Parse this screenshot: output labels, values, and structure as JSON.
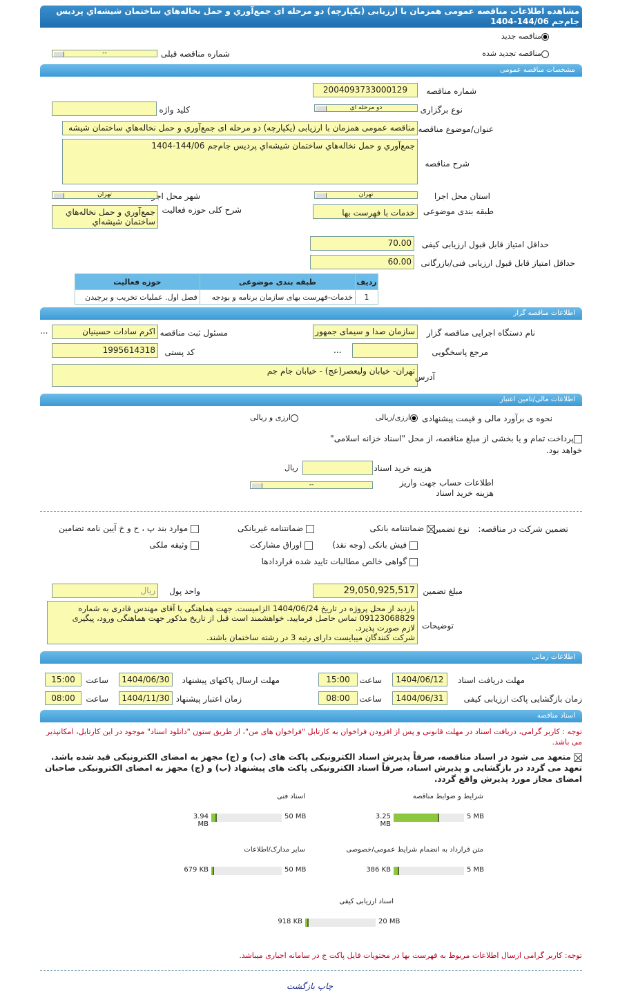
{
  "title": "مشاهده اطلاعات مناقصه عمومی همزمان با ارزیابی (یکپارچه) دو مرحله ای جمع‌آوري و حمل نخاله‌هاي ساختمان شيشه‌اي پرديس جام‌جم 144/06-1404",
  "tender_type": {
    "new_label": "مناقصه جديد",
    "renewed_label": "مناقصه تجديد شده",
    "selected": "new",
    "prev_label": "شماره مناقصه قبلی",
    "prev_value": "--"
  },
  "general": {
    "header": "مشخصات مناقصه عمومی",
    "number_label": "شماره مناقصه",
    "number": "2004093733000129",
    "holding_label": "نوع برگزاری",
    "holding": "دو مرحله ای",
    "keyword_label": "کلید واژه",
    "keyword": "",
    "subject_label": "عنوان/موضوع مناقصه",
    "subject": "مناقصه عمومی همزمان با ارزیابی (یکپارچه) دو مرحله ای جمع‌آوري و حمل نخاله‌هاي ساختمان شيشه",
    "desc_label": "شرح مناقصه",
    "desc": "جمع‌آوري و حمل نخاله‌هاي ساختمان شيشه‌اي پرديس جام‌جم 144/06-1404",
    "province_label": "استان محل اجرا",
    "province": "تهران",
    "city_label": "شهر محل اجرا",
    "city": "تهران",
    "category_label": "طبقه بندی موضوعی",
    "category": "خدمات با فهرست بها",
    "activity_label": "شرح کلی حوزه فعالیت",
    "activity": "جمع‌آوري و حمل نخاله‌هاي ساختمان شيشه‌اي",
    "min_quality_label": "حداقل امتیاز قابل قبول ارزیابی کیفی",
    "min_quality": "70.00",
    "min_tech_label": "حداقل امتیاز قابل قبول ارزیابی فنی/بازرگانی",
    "min_tech": "60.00",
    "table": {
      "headers": [
        "ردیف",
        "طبقه بندی موضوعی",
        "حوزه فعالیت"
      ],
      "rows": [
        [
          "1",
          "خدمات-فهرست بهای سازمان برنامه و بودجه",
          "فصل اول. عملیات تخریب و برچیدن"
        ]
      ]
    }
  },
  "organizer": {
    "header": "اطلاعات مناقصه گزار",
    "org_label": "نام دستگاه اجرایی مناقصه گزار",
    "org": "سازمان صدا و سیمای جمهور",
    "officer_label": "مسئول ثبت مناقصه",
    "officer": "اکرم سادات حسينيان",
    "more": "...",
    "ref_label": "مرجع پاسخگویی",
    "ref": "",
    "ref_more": "...",
    "postal_label": "کد پستی",
    "postal": "1995614318",
    "address_label": "آدرس",
    "address": "تهران- خیابان ولیعصر(عج) - خیابان جام جم"
  },
  "finance": {
    "header": "اطلاعات مالی/تامین اعتبار",
    "estimate_label": "نحوه ی برآورد مالی و قیمت پیشنهادی",
    "opt1": "ارزی/ریالی",
    "opt2": "ارزی و ریالی",
    "selected": "opt1",
    "treasury_label": "پرداخت تمام و یا بخشی از مبلغ مناقصه، از محل \"اسناد خزانه اسلامی\" خواهد بود.",
    "treasury_checked": false,
    "fee_label": "هزینه خرید اسناد",
    "fee": "",
    "fee_unit": "ریال",
    "account_label": "اطلاعات حساب جهت واریز هزینه خرید اسناد",
    "account": "--"
  },
  "guarantee": {
    "label": "تضمین شرکت در مناقصه:",
    "type_label": "نوع تضمین",
    "options": [
      {
        "label": "ضمانتنامه بانکی",
        "checked": true
      },
      {
        "label": "ضمانتنامه غیربانکی",
        "checked": false
      },
      {
        "label": "موارد بند پ ، ح و خ آيين نامه تضامين",
        "checked": false
      },
      {
        "label": "فیش بانکی (وجه نقد)",
        "checked": false
      },
      {
        "label": "اوراق مشارکت",
        "checked": false
      },
      {
        "label": "وثیقه ملکی",
        "checked": false
      },
      {
        "label": "گواهی خالص مطالبات تاييد شده قراردادها",
        "checked": false
      }
    ],
    "amount_label": "مبلغ تضمین",
    "amount": "29,050,925,517",
    "currency_label": "واحد پول",
    "currency": "ریال",
    "notes_label": "توضیحات",
    "notes": [
      "بازدید از محل پروژه در تاریخ 1404/06/24 الزامیست. جهت هماهنگی با آقای مهندس قادری به شماره",
      "09123068829 تماس حاصل فرمایید. خواهشمند است قبل از تاریخ مذکور جهت هماهنگی ورود، پیگیری",
      "لازم صورت پذیرد.",
      "شرکت کنندگان میبایست دارای رتبه 3  در رشته ساختمان باشند."
    ]
  },
  "timing": {
    "header": "اطلاعات زمانی",
    "time_label": "ساعت",
    "doc_deadline_label": "مهلت دریافت اسناد",
    "doc_deadline": "1404/06/12",
    "doc_time": "15:00",
    "submit_label": "مهلت ارسال پاکتهای پیشنهاد",
    "submit": "1404/06/30",
    "submit_time": "15:00",
    "open_label": "زمان بازگشایی پاکت ارزیابی کیفی",
    "open": "1404/06/31",
    "open_time": "08:00",
    "validity_label": "زمان اعتبار پیشنهاد",
    "validity": "1404/11/30",
    "validity_time": "08:00"
  },
  "documents": {
    "header": "اسناد مناقصه",
    "note": "توجه : کاربر گرامی، دریافت اسناد در مهلت قانونی و پس از افزودن فراخوان به کارتابل \"فراخوان های من\"، از طریق ستون \"دانلود اسناد\" موجود در این کارتابل، امکانپذیر می باشد.",
    "commit_checked": true,
    "commit": [
      "متعهد می شود در اسناد مناقصه، صرفاً پذیرش اسناد الکترونیکی پاکت های (ب) و (ج) مجهز به امضای الکترونیکی قید شده باشد.",
      "تعهد می گردد در بازگشایی و پذیرش اسناد، صرفاً اسناد الکترونیکی پاکت های پیشنهاد (ب) و (ج) مجهز به امضای الکترونیکی صاحبان",
      "امضای مجاز مورد پذیرش واقع گردد."
    ],
    "files": [
      {
        "title": "شرایط و ضوابط مناقصه",
        "used": "3.25 MB",
        "max": "5 MB",
        "fraction": 0.65
      },
      {
        "title": "اسناد فنی",
        "used": "3.94 MB",
        "max": "50 MB",
        "fraction": 0.08
      },
      {
        "title": "متن قرارداد به انضمام شرایط عمومی/خصوصی",
        "used": "386 KB",
        "max": "5 MB",
        "fraction": 0.08
      },
      {
        "title": "سایر مدارک/اطلاعات",
        "used": "679 KB",
        "max": "50 MB",
        "fraction": 0.02
      },
      {
        "title": "اسناد ارزیابی کیفی",
        "used": "918 KB",
        "max": "20 MB",
        "fraction": 0.05
      }
    ],
    "footer_note": "توجه: کاربر گرامی ارسال اطلاعات مربوط به فهرست بها در محتویات فایل پاکت ج در سامانه اجباری میباشد."
  },
  "footer": {
    "print": "چاپ",
    "back": "بازگشت"
  }
}
